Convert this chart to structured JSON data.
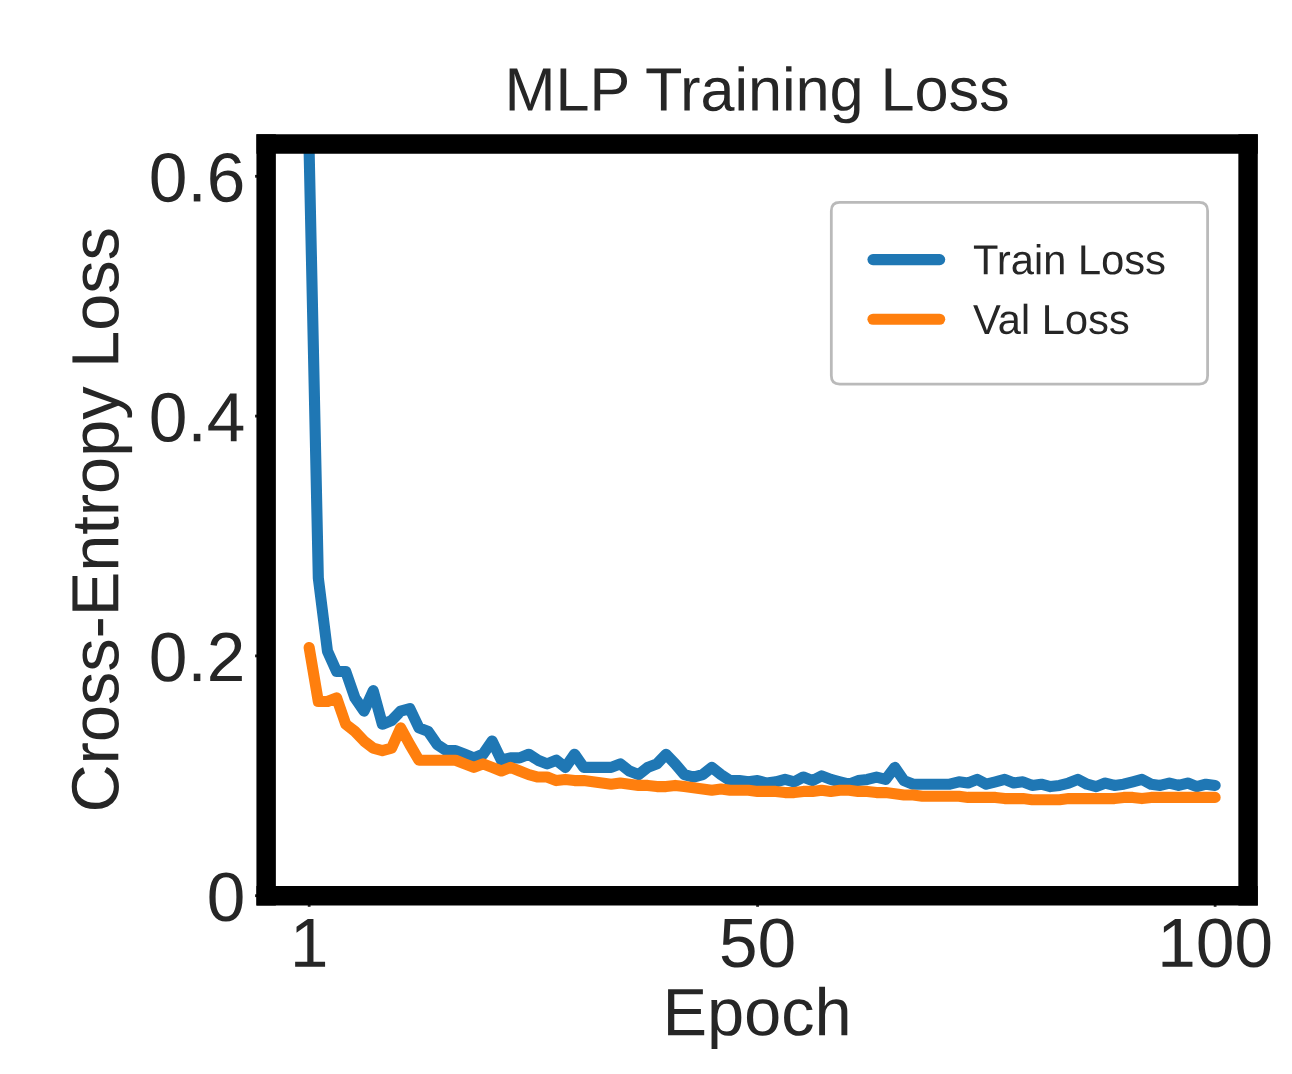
{
  "chart_data": {
    "type": "line",
    "title": "MLP Training Loss",
    "xlabel": "Epoch",
    "ylabel": "Cross-Entropy Loss",
    "x": [
      1,
      2,
      3,
      4,
      5,
      6,
      7,
      8,
      9,
      10,
      11,
      12,
      13,
      14,
      15,
      16,
      17,
      18,
      19,
      20,
      21,
      22,
      23,
      24,
      25,
      26,
      27,
      28,
      29,
      30,
      31,
      32,
      33,
      34,
      35,
      36,
      37,
      38,
      39,
      40,
      41,
      42,
      43,
      44,
      45,
      46,
      47,
      48,
      49,
      50,
      51,
      52,
      53,
      54,
      55,
      56,
      57,
      58,
      59,
      60,
      61,
      62,
      63,
      64,
      65,
      66,
      67,
      68,
      69,
      70,
      71,
      72,
      73,
      74,
      75,
      76,
      77,
      78,
      79,
      80,
      81,
      82,
      83,
      84,
      85,
      86,
      87,
      88,
      89,
      90,
      91,
      92,
      93,
      94,
      95,
      96,
      97,
      98,
      99,
      100
    ],
    "series": [
      {
        "name": "Train Loss",
        "color": "#1f77b4",
        "values": [
          0.62,
          0.265,
          0.204,
          0.187,
          0.187,
          0.165,
          0.154,
          0.171,
          0.143,
          0.146,
          0.154,
          0.156,
          0.14,
          0.137,
          0.126,
          0.121,
          0.121,
          0.118,
          0.115,
          0.118,
          0.129,
          0.113,
          0.115,
          0.115,
          0.118,
          0.113,
          0.11,
          0.113,
          0.107,
          0.118,
          0.107,
          0.107,
          0.107,
          0.107,
          0.11,
          0.104,
          0.101,
          0.107,
          0.11,
          0.118,
          0.11,
          0.101,
          0.099,
          0.101,
          0.107,
          0.101,
          0.096,
          0.096,
          0.095,
          0.096,
          0.094,
          0.095,
          0.097,
          0.095,
          0.099,
          0.096,
          0.1,
          0.097,
          0.095,
          0.093,
          0.096,
          0.097,
          0.099,
          0.097,
          0.107,
          0.096,
          0.093,
          0.093,
          0.093,
          0.093,
          0.093,
          0.095,
          0.094,
          0.097,
          0.093,
          0.095,
          0.097,
          0.094,
          0.095,
          0.092,
          0.093,
          0.091,
          0.092,
          0.094,
          0.097,
          0.093,
          0.091,
          0.094,
          0.092,
          0.093,
          0.095,
          0.097,
          0.093,
          0.092,
          0.094,
          0.092,
          0.094,
          0.091,
          0.093,
          0.092
        ]
      },
      {
        "name": "Val Loss",
        "color": "#ff7f0e",
        "values": [
          0.207,
          0.162,
          0.162,
          0.165,
          0.143,
          0.137,
          0.129,
          0.123,
          0.121,
          0.123,
          0.14,
          0.126,
          0.113,
          0.113,
          0.113,
          0.113,
          0.113,
          0.11,
          0.107,
          0.11,
          0.107,
          0.104,
          0.107,
          0.104,
          0.101,
          0.099,
          0.099,
          0.096,
          0.097,
          0.096,
          0.096,
          0.095,
          0.094,
          0.093,
          0.094,
          0.093,
          0.092,
          0.092,
          0.091,
          0.091,
          0.092,
          0.091,
          0.09,
          0.089,
          0.088,
          0.089,
          0.088,
          0.088,
          0.088,
          0.087,
          0.087,
          0.087,
          0.086,
          0.086,
          0.087,
          0.087,
          0.088,
          0.087,
          0.088,
          0.088,
          0.087,
          0.087,
          0.086,
          0.086,
          0.085,
          0.084,
          0.084,
          0.083,
          0.083,
          0.083,
          0.083,
          0.083,
          0.082,
          0.082,
          0.082,
          0.082,
          0.081,
          0.081,
          0.081,
          0.08,
          0.08,
          0.08,
          0.08,
          0.081,
          0.081,
          0.081,
          0.081,
          0.081,
          0.081,
          0.082,
          0.082,
          0.081,
          0.082,
          0.082,
          0.082,
          0.082,
          0.082,
          0.082,
          0.082,
          0.082
        ]
      }
    ],
    "xlim": [
      -3.7,
      103.6
    ],
    "xticks": [
      1,
      50,
      100
    ],
    "ylim": [
      0,
      0.627
    ],
    "yticks": [
      0,
      0.2,
      0.4,
      0.6
    ],
    "grid": false,
    "legend": "top right",
    "marker": "none",
    "line_style": "solid"
  }
}
